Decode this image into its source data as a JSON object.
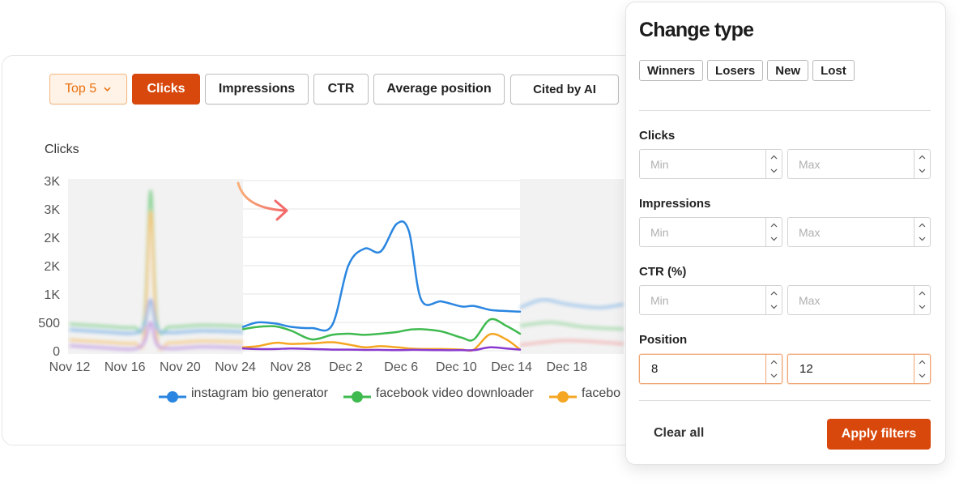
{
  "toolbar": {
    "top_selector": "Top 5",
    "buttons": [
      "Clicks",
      "Impressions",
      "CTR",
      "Average position",
      "Cited by AI"
    ],
    "active": "Clicks"
  },
  "chart": {
    "metric_label": "Clicks"
  },
  "chart_data": {
    "type": "line",
    "ylabel": "Clicks",
    "y_tick_labels": [
      "0",
      "500",
      "1K",
      "2K",
      "2K",
      "3K",
      "3K"
    ],
    "x_tick_labels": [
      "Nov 12",
      "Nov 16",
      "Nov 20",
      "Nov 24",
      "Nov 28",
      "Dec 2",
      "Dec 6",
      "Dec 10",
      "Dec 14",
      "Dec 18"
    ],
    "highlighted_range": [
      "Nov 24",
      "Dec 15"
    ],
    "series": [
      {
        "name": "instagram bio generator",
        "color": "#2a86e0",
        "values": [
          400,
          420,
          330,
          390,
          1460,
          1600,
          2260,
          870,
          700,
          760
        ]
      },
      {
        "name": "facebook video downloader",
        "color": "#3fba4f",
        "values": [
          430,
          450,
          250,
          350,
          200,
          290,
          340,
          250,
          700,
          440
        ]
      },
      {
        "name": "facebook",
        "color": "#f5a623",
        "values": [
          80,
          120,
          150,
          120,
          80,
          50,
          40,
          30,
          470,
          100
        ]
      }
    ],
    "legend": [
      "instagram bio generator",
      "facebook video downloader",
      "facebo"
    ]
  },
  "panel": {
    "title": "Change type",
    "chips": [
      "Winners",
      "Losers",
      "New",
      "Lost"
    ],
    "fields": [
      {
        "label": "Clicks",
        "min_placeholder": "Min",
        "max_placeholder": "Max",
        "min_value": "",
        "max_value": ""
      },
      {
        "label": "Impressions",
        "min_placeholder": "Min",
        "max_placeholder": "Max",
        "min_value": "",
        "max_value": ""
      },
      {
        "label": "CTR (%)",
        "min_placeholder": "Min",
        "max_placeholder": "Max",
        "min_value": "",
        "max_value": ""
      },
      {
        "label": "Position",
        "min_placeholder": "Min",
        "max_placeholder": "Max",
        "min_value": "8",
        "max_value": "12"
      }
    ],
    "clear_label": "Clear all",
    "apply_label": "Apply filters"
  },
  "colors": {
    "accent": "#d8470b",
    "top5_bg": "#fff2e6",
    "top5_text": "#e8700e"
  }
}
